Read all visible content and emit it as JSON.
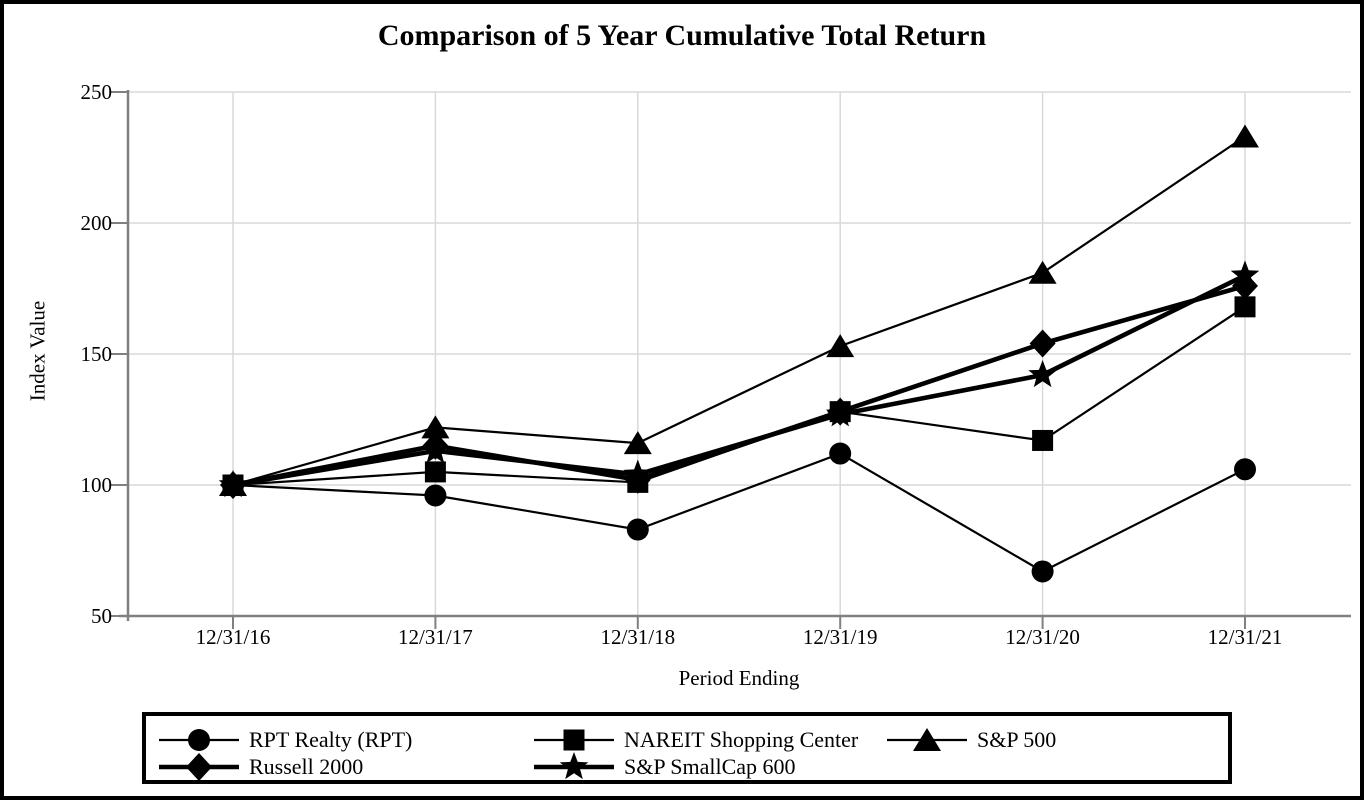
{
  "chart_data": {
    "type": "line",
    "title": "Comparison of 5 Year Cumulative Total Return",
    "xlabel": "Period Ending",
    "ylabel": "Index Value",
    "categories": [
      "12/31/16",
      "12/31/17",
      "12/31/18",
      "12/31/19",
      "12/31/20",
      "12/31/21"
    ],
    "series": [
      {
        "name": "RPT Realty (RPT)",
        "marker": "circle",
        "line": "thin",
        "values": [
          100,
          96,
          83,
          112,
          67,
          106
        ]
      },
      {
        "name": "NAREIT Shopping Center",
        "marker": "square",
        "line": "thin",
        "values": [
          100,
          105,
          101,
          128,
          117,
          168
        ]
      },
      {
        "name": "S&P 500",
        "marker": "triangle",
        "line": "thin",
        "values": [
          100,
          122,
          116,
          153,
          181,
          233
        ]
      },
      {
        "name": "Russell 2000",
        "marker": "diamond",
        "line": "thick",
        "values": [
          100,
          115,
          102,
          128,
          154,
          176
        ]
      },
      {
        "name": "S&P SmallCap 600",
        "marker": "star",
        "line": "thick",
        "values": [
          100,
          113,
          104,
          127,
          142,
          180
        ]
      }
    ],
    "ylim": [
      50,
      250
    ],
    "yticks": [
      50,
      100,
      150,
      200,
      250
    ],
    "grid": true,
    "legend_position": "bottom",
    "colors": {
      "series": "#000000",
      "axis": "#808080",
      "gridline": "#d9d9d9",
      "text": "#000000",
      "background": "#ffffff"
    }
  }
}
